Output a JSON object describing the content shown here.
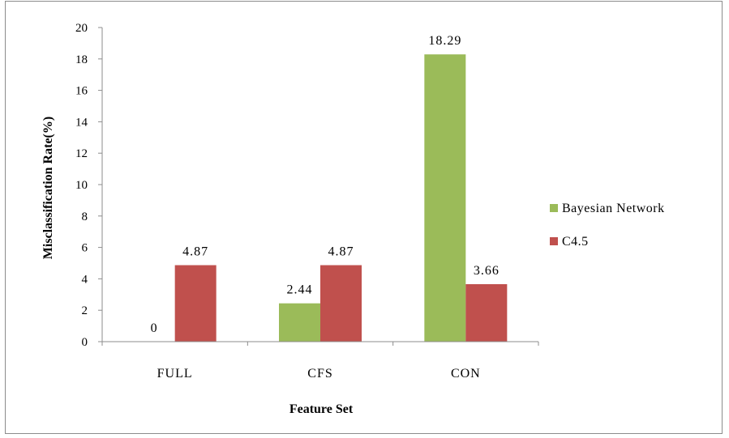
{
  "chart_data": {
    "type": "bar",
    "categories": [
      "FULL",
      "CFS",
      "CON"
    ],
    "series": [
      {
        "name": "Bayesian Network",
        "values": [
          0,
          2.44,
          18.29
        ],
        "labels": [
          "0",
          "2.44",
          "18.29"
        ],
        "color": "#9bbb59"
      },
      {
        "name": "C4.5",
        "values": [
          4.87,
          4.87,
          3.66
        ],
        "labels": [
          "4.87",
          "4.87",
          "3.66"
        ],
        "color": "#c0504d"
      }
    ],
    "xlabel": "Feature Set",
    "ylabel": "Misclassification Rate(%)",
    "ylim": [
      0,
      20
    ],
    "yticks": [
      0,
      2,
      4,
      6,
      8,
      10,
      12,
      14,
      16,
      18,
      20
    ],
    "grid": false,
    "legend_position": "right"
  }
}
